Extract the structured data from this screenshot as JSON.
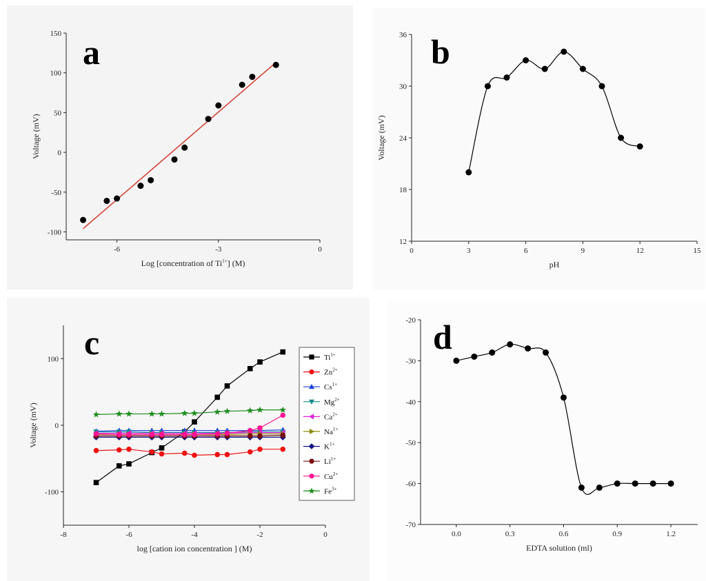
{
  "chart_data": [
    {
      "id": "a",
      "panel_label": "a",
      "type": "scatter",
      "xlabel": "Log [concentration of Ti",
      "xlabel_sup": "1+",
      "xlabel_tail": "] (M)",
      "ylabel": "Voltage (mV)",
      "xlim": [
        -7.5,
        0
      ],
      "ylim": [
        -110,
        150
      ],
      "xticks": [
        -6,
        -3,
        0
      ],
      "yticks": [
        -100,
        -50,
        0,
        50,
        100,
        150
      ],
      "points": [
        {
          "x": -7.0,
          "y": -85
        },
        {
          "x": -6.3,
          "y": -61
        },
        {
          "x": -6.0,
          "y": -58
        },
        {
          "x": -5.3,
          "y": -42
        },
        {
          "x": -5.0,
          "y": -35
        },
        {
          "x": -4.3,
          "y": -9
        },
        {
          "x": -4.0,
          "y": 6
        },
        {
          "x": -3.3,
          "y": 42
        },
        {
          "x": -3.0,
          "y": 59
        },
        {
          "x": -2.3,
          "y": 85
        },
        {
          "x": -2.0,
          "y": 95
        },
        {
          "x": -1.3,
          "y": 110
        }
      ],
      "fit_line": {
        "x": [
          -7.0,
          -1.3
        ],
        "y": [
          -96,
          113
        ]
      },
      "fit_color": "#d23a2e"
    },
    {
      "id": "b",
      "panel_label": "b",
      "type": "line",
      "xlabel": "pH",
      "ylabel": "Voltage (mV)",
      "xlim": [
        0,
        15
      ],
      "ylim": [
        12,
        36
      ],
      "xticks": [
        0,
        3,
        6,
        9,
        12,
        15
      ],
      "yticks": [
        12,
        18,
        24,
        30,
        36
      ],
      "points": [
        {
          "x": 3,
          "y": 20
        },
        {
          "x": 4,
          "y": 30
        },
        {
          "x": 5,
          "y": 31
        },
        {
          "x": 6,
          "y": 33
        },
        {
          "x": 7,
          "y": 32
        },
        {
          "x": 8,
          "y": 34
        },
        {
          "x": 9,
          "y": 32
        },
        {
          "x": 10,
          "y": 30
        },
        {
          "x": 11,
          "y": 24
        },
        {
          "x": 12,
          "y": 23
        }
      ]
    },
    {
      "id": "c",
      "panel_label": "c",
      "type": "line",
      "xlabel": "log [cation ion concentration ] (M)",
      "ylabel": "Voltage (mV)",
      "xlim": [
        -8,
        0
      ],
      "ylim": [
        -150,
        150
      ],
      "xticks": [
        -8,
        -6,
        -4,
        -2,
        0
      ],
      "yticks": [
        -100,
        0,
        100
      ],
      "x": [
        -7.0,
        -6.3,
        -6.0,
        -5.3,
        -5.0,
        -4.3,
        -4.0,
        -3.3,
        -3.0,
        -2.3,
        -2.0,
        -1.3
      ],
      "series": [
        {
          "name": "Ti",
          "sup": "1+",
          "color": "#000000",
          "marker": "square",
          "values": [
            -86,
            -61,
            -58,
            -41,
            -34,
            -10,
            5,
            42,
            59,
            85,
            95,
            110
          ]
        },
        {
          "name": "Zn",
          "sup": "2+",
          "color": "#ee1111",
          "marker": "circle",
          "values": [
            -38,
            -37,
            -36,
            -40,
            -43,
            -42,
            -45,
            -44,
            -44,
            -40,
            -36,
            -36
          ]
        },
        {
          "name": "Cs",
          "sup": "1+",
          "color": "#1a3fe0",
          "marker": "triangle-up",
          "values": [
            -9,
            -8,
            -8,
            -8,
            -8,
            -8,
            -8,
            -8,
            -8,
            -8,
            -8,
            -7
          ]
        },
        {
          "name": "Mg",
          "sup": "2+",
          "color": "#148a8a",
          "marker": "triangle-down",
          "values": [
            -10,
            -10,
            -10,
            -11,
            -11,
            -11,
            -11,
            -11,
            -11,
            -10,
            -10,
            -10
          ]
        },
        {
          "name": "Ca",
          "sup": "2+",
          "color": "#e020e0",
          "marker": "triangle-left",
          "values": [
            -12,
            -12,
            -12,
            -12,
            -12,
            -12,
            -12,
            -12,
            -12,
            -11,
            -11,
            -11
          ]
        },
        {
          "name": "Na",
          "sup": "1+",
          "color": "#8a8a00",
          "marker": "triangle-right",
          "values": [
            -14,
            -14,
            -14,
            -14,
            -14,
            -14,
            -14,
            -14,
            -14,
            -13,
            -13,
            -13
          ]
        },
        {
          "name": "K",
          "sup": "1+",
          "color": "#101080",
          "marker": "diamond",
          "values": [
            -18,
            -18,
            -18,
            -18,
            -18,
            -18,
            -18,
            -18,
            -18,
            -18,
            -18,
            -18
          ]
        },
        {
          "name": "Li",
          "sup": "1+",
          "color": "#7a0f0f",
          "marker": "hexagon",
          "values": [
            -16,
            -16,
            -16,
            -16,
            -16,
            -16,
            -16,
            -16,
            -16,
            -16,
            -16,
            -15
          ]
        },
        {
          "name": "Cu",
          "sup": "2+",
          "color": "#ff1493",
          "marker": "circle",
          "values": [
            -13,
            -14,
            -14,
            -14,
            -14,
            -14,
            -14,
            -13,
            -12,
            -8,
            -4,
            15
          ]
        },
        {
          "name": "Fe",
          "sup": "3+",
          "color": "#1e8c1e",
          "marker": "star",
          "values": [
            16,
            17,
            17,
            17,
            17,
            18,
            18,
            20,
            21,
            22,
            23,
            23
          ]
        }
      ]
    },
    {
      "id": "d",
      "panel_label": "d",
      "type": "line",
      "xlabel": "EDTA solution (ml)",
      "ylabel": "",
      "xlim": [
        -0.2,
        1.35
      ],
      "ylim": [
        -70,
        -20
      ],
      "xticks": [
        0.0,
        0.3,
        0.6,
        0.9,
        1.2
      ],
      "xtick_labels": [
        "0.0",
        "0.3",
        "0.6",
        "0.9",
        "1.2"
      ],
      "yticks": [
        -70,
        -60,
        -50,
        -40,
        -30,
        -20
      ],
      "points": [
        {
          "x": 0.0,
          "y": -30
        },
        {
          "x": 0.1,
          "y": -29
        },
        {
          "x": 0.2,
          "y": -28
        },
        {
          "x": 0.3,
          "y": -26
        },
        {
          "x": 0.4,
          "y": -27
        },
        {
          "x": 0.5,
          "y": -28
        },
        {
          "x": 0.6,
          "y": -39
        },
        {
          "x": 0.7,
          "y": -61
        },
        {
          "x": 0.8,
          "y": -61
        },
        {
          "x": 0.9,
          "y": -60
        },
        {
          "x": 1.0,
          "y": -60
        },
        {
          "x": 1.1,
          "y": -60
        },
        {
          "x": 1.2,
          "y": -60
        }
      ]
    }
  ]
}
